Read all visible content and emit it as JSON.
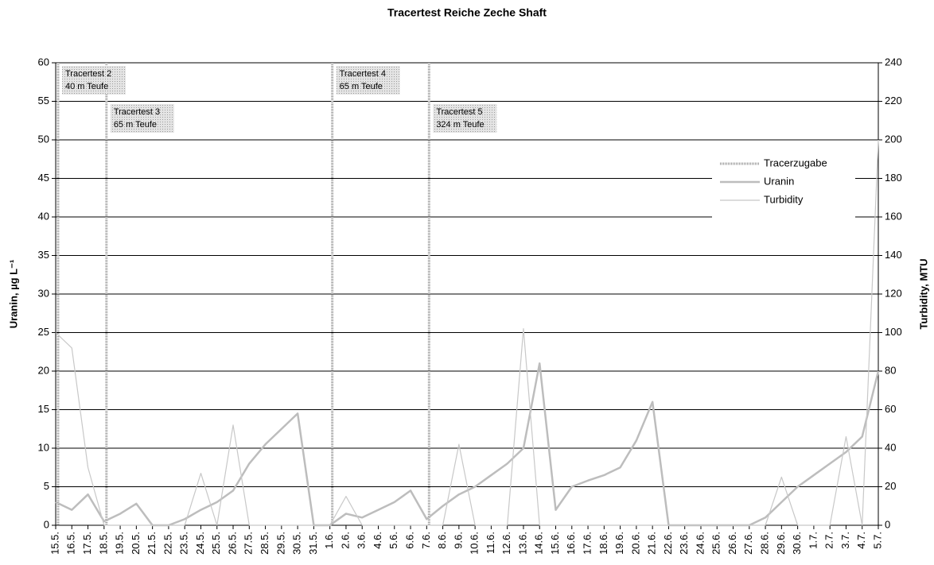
{
  "chart_data": {
    "type": "line",
    "title": "Tracertest Reiche Zeche Shaft",
    "y_label": "Uranin, µg L⁻¹",
    "y2_label": "Turbidity, MTU",
    "categories": [
      "15.5.",
      "16.5.",
      "17.5.",
      "18.5.",
      "19.5.",
      "20.5.",
      "21.5.",
      "22.5.",
      "23.5.",
      "24.5.",
      "25.5.",
      "26.5.",
      "27.5.",
      "28.5.",
      "29.5.",
      "30.5.",
      "31.5.",
      "1.6.",
      "2.6.",
      "3.6.",
      "4.6.",
      "5.6.",
      "6.6.",
      "7.6.",
      "8.6.",
      "9.6.",
      "10.6.",
      "11.6.",
      "12.6.",
      "13.6.",
      "14.6.",
      "15.6.",
      "16.6.",
      "17.6.",
      "18.6.",
      "19.6.",
      "20.6.",
      "21.6.",
      "22.6.",
      "23.6.",
      "24.6.",
      "25.6.",
      "26.6.",
      "27.6.",
      "28.6.",
      "29.6.",
      "30.6.",
      "1.7.",
      "2.7.",
      "3.7.",
      "4.7.",
      "5.7."
    ],
    "series": [
      {
        "name": "Uranin",
        "color": "#bdbdbd",
        "axis": "y",
        "values": [
          3,
          2,
          4,
          0.5,
          1.5,
          2.8,
          0,
          0,
          0.8,
          2,
          3,
          4.5,
          8,
          10.5,
          12.5,
          14.5,
          0,
          0,
          1.5,
          1,
          2,
          3,
          4.5,
          0.8,
          2.5,
          4,
          5,
          6.5,
          8,
          10,
          21,
          2,
          5,
          5.8,
          6.5,
          7.5,
          11,
          16,
          0,
          0,
          0,
          0,
          0,
          0,
          1,
          3,
          5,
          6.5,
          8,
          9.5,
          11.5,
          20
        ]
      },
      {
        "name": "Turbidity",
        "color": "#c8c8c8",
        "axis": "y2",
        "values": [
          100,
          92,
          30,
          0,
          0,
          0,
          0,
          0,
          0,
          27,
          0,
          52,
          0,
          0,
          0,
          0,
          0,
          0,
          15,
          0,
          0,
          0,
          0,
          0,
          0,
          42,
          0,
          0,
          0,
          102,
          0,
          0,
          0,
          0,
          0,
          0,
          0,
          0,
          0,
          0,
          0,
          0,
          0,
          0,
          0,
          25,
          0,
          0,
          0,
          46,
          0,
          200
        ]
      }
    ],
    "tracer": {
      "name": "Tracerzugabe",
      "color": "#9a9a9a",
      "dates": [
        "15.5.",
        "18.5.",
        "1.6.",
        "7.6."
      ]
    },
    "annotations": [
      {
        "x": "15.5.",
        "lines": [
          "Tracertest 2",
          "40 m Teufe"
        ]
      },
      {
        "x": "18.5.",
        "lines": [
          "Tracertest 3",
          "65 m Teufe"
        ]
      },
      {
        "x": "1.6.",
        "lines": [
          "Tracertest 4",
          "65 m Teufe"
        ]
      },
      {
        "x": "7.6.",
        "lines": [
          "Tracertest 5",
          "324 m Teufe"
        ]
      }
    ],
    "ylim": [
      0,
      60
    ],
    "yticks": [
      0,
      5,
      10,
      15,
      20,
      25,
      30,
      35,
      40,
      45,
      50,
      55,
      60
    ],
    "y2lim": [
      0,
      240
    ],
    "y2ticks": [
      0,
      20,
      40,
      60,
      80,
      100,
      120,
      140,
      160,
      180,
      200,
      220,
      240
    ],
    "grid": true,
    "legend": "right"
  }
}
